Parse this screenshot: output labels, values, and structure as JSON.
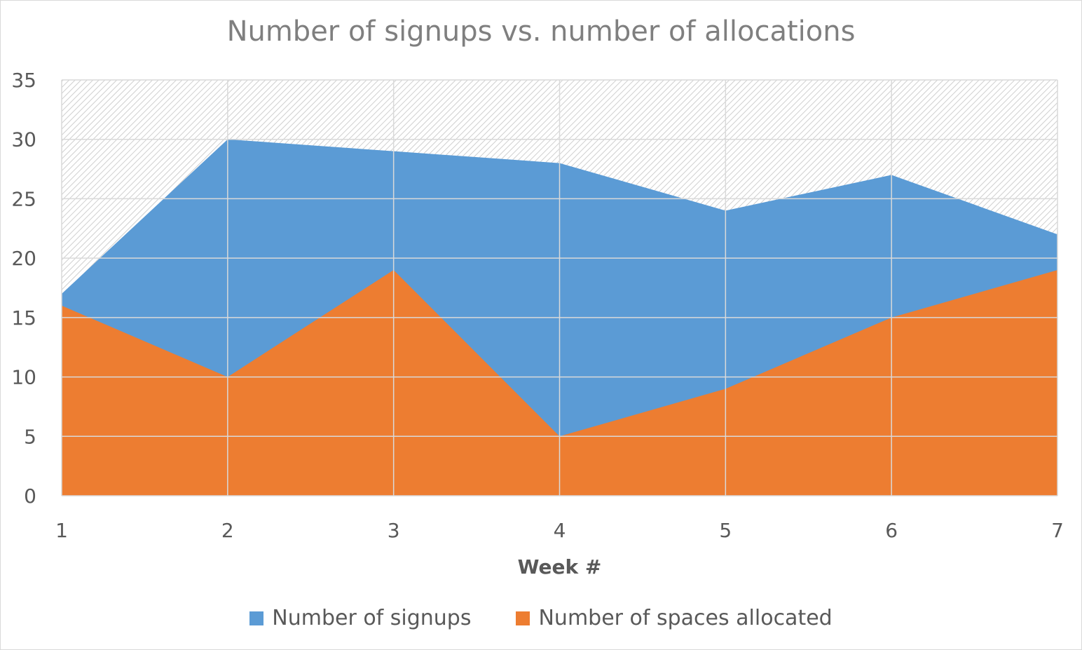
{
  "chart_data": {
    "type": "area",
    "title": "Number of signups vs. number of allocations",
    "xlabel": "Week #",
    "ylabel": "",
    "x": [
      1,
      2,
      3,
      4,
      5,
      6,
      7
    ],
    "ylim": [
      0,
      35
    ],
    "yticks": [
      0,
      5,
      10,
      15,
      20,
      25,
      30,
      35
    ],
    "grid": true,
    "legend_position": "bottom",
    "series": [
      {
        "name": "Number of signups",
        "color": "#5b9bd5",
        "values": [
          17,
          30,
          29,
          28,
          24,
          27,
          22
        ]
      },
      {
        "name": "Number of spaces allocated",
        "color": "#ed7d31",
        "values": [
          16,
          10,
          19,
          5,
          9,
          15,
          19
        ]
      }
    ]
  }
}
